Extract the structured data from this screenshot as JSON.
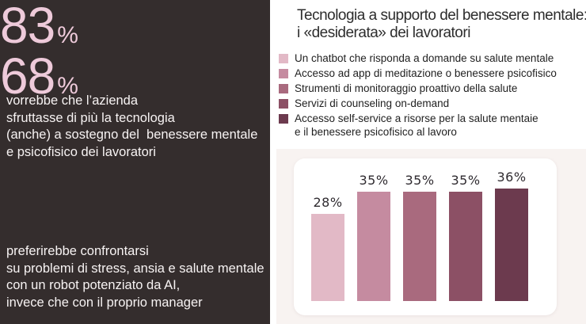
{
  "palette": [
    "#e2b9c6",
    "#c58ba0",
    "#a96a7e",
    "#8c5065",
    "#6c3a4e"
  ],
  "colors": {
    "left_bg": "#342d2d",
    "stat_number": "#eecada",
    "stat_text": "#f7f3f3",
    "title_text": "#2d2d2d",
    "legend_text": "#1f1f1f",
    "right_bg_bottom": "#f8f3f1",
    "card_bg": "#ffffff",
    "bar_label": "#2f2b30"
  },
  "left_panel": {
    "stats": [
      {
        "value": "83",
        "unit": "%",
        "text": "vorrebbe che l’azienda\nsfruttasse di più la tecnologia\n(anche) a sostegno del  benessere mentale\ne psicofisico dei lavoratori"
      },
      {
        "value": "68",
        "unit": "%",
        "text": "preferirebbe confrontarsi\nsu problemi di stress, ansia e salute mentale\ncon un robot potenziato da AI,\ninvece che con il proprio manager"
      }
    ]
  },
  "right_panel": {
    "title": "Tecnologia a supporto del benessere mentale:\ni «desiderata» dei lavoratori",
    "legend": [
      "Un chatbot che risponda a domande su salute mentale",
      "Accesso ad app di meditazione o benessere psicofisico",
      "Strumenti di monitoraggio proattivo della salute",
      "Servizi di counseling on-demand",
      "Accesso self-service a risorse per la salute mentaie\ne il benessere psicofisico al lavoro"
    ]
  },
  "chart_data": {
    "type": "bar",
    "title": "Tecnologia a supporto del benessere mentale: i «desiderata» dei lavoratori",
    "categories": [
      "Un chatbot che risponda a domande su salute mentale",
      "Accesso ad app di meditazione o benessere psicofisico",
      "Strumenti di monitoraggio proattivo della salute",
      "Servizi di counseling on-demand",
      "Accesso self-service a risorse per la salute mentaie e il benessere psicofisico al lavoro"
    ],
    "values": [
      28,
      35,
      35,
      35,
      36
    ],
    "labels": [
      "28%",
      "35%",
      "35%",
      "35%",
      "36%"
    ],
    "colors": [
      "#e2b9c6",
      "#c58ba0",
      "#a96a7e",
      "#8c5065",
      "#6c3a4e"
    ],
    "xlabel": "",
    "ylabel": "",
    "ylim": [
      0,
      40
    ],
    "grid": false,
    "legend_position": "top",
    "value_labels": true
  }
}
